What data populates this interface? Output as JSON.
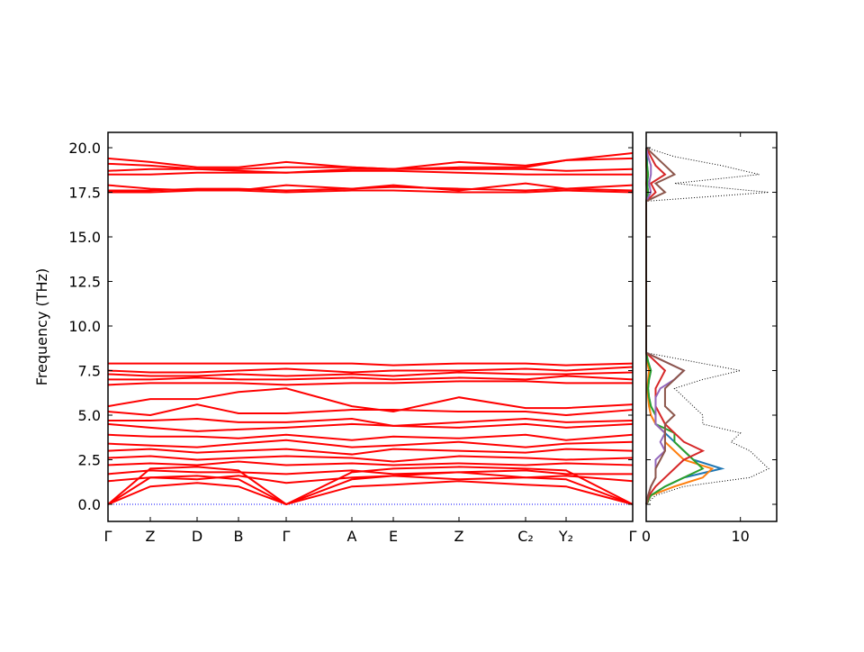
{
  "chart_data": [
    {
      "type": "line",
      "y_label": "Frequency (THz)",
      "color": "#ff0000",
      "zero_line_color": "#0000ff",
      "x": [
        0,
        47,
        99,
        145,
        198,
        271,
        317,
        390,
        464,
        509,
        583
      ],
      "xlim": [
        0,
        583
      ],
      "xticks": [
        {
          "value": 0,
          "label": "Γ"
        },
        {
          "value": 47,
          "label": "Z"
        },
        {
          "value": 99,
          "label": "D"
        },
        {
          "value": 145,
          "label": "B"
        },
        {
          "value": 198,
          "label": "Γ"
        },
        {
          "value": 271,
          "label": "A"
        },
        {
          "value": 317,
          "label": "E"
        },
        {
          "value": 390,
          "label": "Z"
        },
        {
          "value": 464,
          "label": "C₂"
        },
        {
          "value": 509,
          "label": "Y₂"
        },
        {
          "value": 583,
          "label": "Γ"
        }
      ],
      "ylim": [
        -0.96,
        20.86
      ],
      "yticks": [
        {
          "value": 0,
          "label": "0.0"
        },
        {
          "value": 2.5,
          "label": "2.5"
        },
        {
          "value": 5,
          "label": "5.0"
        },
        {
          "value": 7.5,
          "label": "7.5"
        },
        {
          "value": 10,
          "label": "10.0"
        },
        {
          "value": 12.5,
          "label": "12.5"
        },
        {
          "value": 15,
          "label": "15.0"
        },
        {
          "value": 17.5,
          "label": "17.5"
        },
        {
          "value": 20,
          "label": "20.0"
        }
      ],
      "series": [
        {
          "values": [
            17.5,
            17.5,
            17.6,
            17.6,
            17.5,
            17.6,
            17.6,
            17.5,
            17.5,
            17.6,
            17.5
          ]
        },
        {
          "values": [
            17.6,
            17.6,
            17.7,
            17.7,
            17.6,
            17.7,
            17.8,
            17.7,
            17.6,
            17.7,
            17.6
          ]
        },
        {
          "values": [
            17.9,
            17.7,
            17.6,
            17.6,
            17.9,
            17.7,
            17.9,
            17.6,
            18.0,
            17.7,
            17.9
          ]
        },
        {
          "values": [
            18.5,
            18.5,
            18.6,
            18.6,
            18.6,
            18.7,
            18.7,
            18.6,
            18.5,
            18.5,
            18.5
          ]
        },
        {
          "values": [
            18.7,
            18.8,
            18.8,
            18.7,
            18.6,
            18.8,
            18.8,
            18.8,
            18.8,
            18.7,
            18.8
          ]
        },
        {
          "values": [
            19.1,
            19.0,
            18.8,
            18.8,
            18.9,
            18.9,
            18.8,
            19.2,
            19.0,
            19.3,
            19.4
          ]
        },
        {
          "values": [
            19.4,
            19.2,
            18.9,
            18.9,
            19.2,
            18.9,
            18.8,
            18.9,
            18.9,
            19.3,
            19.7
          ]
        },
        {
          "values": [
            6.7,
            6.8,
            6.8,
            6.8,
            6.7,
            6.8,
            6.8,
            6.9,
            6.9,
            6.8,
            6.8
          ]
        },
        {
          "values": [
            7.0,
            7.0,
            7.1,
            7.0,
            7.0,
            7.1,
            7.0,
            7.1,
            7.0,
            7.2,
            7.0
          ]
        },
        {
          "values": [
            7.3,
            7.2,
            7.2,
            7.3,
            7.2,
            7.3,
            7.2,
            7.4,
            7.3,
            7.3,
            7.4
          ]
        },
        {
          "values": [
            7.5,
            7.4,
            7.4,
            7.5,
            7.6,
            7.4,
            7.5,
            7.5,
            7.6,
            7.5,
            7.7
          ]
        },
        {
          "values": [
            7.9,
            7.9,
            7.9,
            7.9,
            7.9,
            7.9,
            7.8,
            7.9,
            7.9,
            7.8,
            7.9
          ]
        },
        {
          "values": [
            5.5,
            5.9,
            5.9,
            6.3,
            6.5,
            5.5,
            5.2,
            6.0,
            5.4,
            5.4,
            5.6
          ]
        },
        {
          "values": [
            5.2,
            5.0,
            5.6,
            5.1,
            5.1,
            5.3,
            5.3,
            5.2,
            5.2,
            5.0,
            5.3
          ]
        },
        {
          "values": [
            4.7,
            4.7,
            4.8,
            4.6,
            4.6,
            4.8,
            4.4,
            4.6,
            4.8,
            4.6,
            4.7
          ]
        },
        {
          "values": [
            4.5,
            4.3,
            4.1,
            4.2,
            4.3,
            4.5,
            4.4,
            4.3,
            4.5,
            4.3,
            4.5
          ]
        },
        {
          "values": [
            3.9,
            3.8,
            3.8,
            3.7,
            3.9,
            3.6,
            3.8,
            3.7,
            3.9,
            3.6,
            3.9
          ]
        },
        {
          "values": [
            3.4,
            3.3,
            3.2,
            3.4,
            3.6,
            3.2,
            3.3,
            3.5,
            3.2,
            3.4,
            3.5
          ]
        },
        {
          "values": [
            3.0,
            3.1,
            2.9,
            3.0,
            3.1,
            2.8,
            3.1,
            3.0,
            2.9,
            3.1,
            3.0
          ]
        },
        {
          "values": [
            2.6,
            2.7,
            2.5,
            2.6,
            2.7,
            2.6,
            2.4,
            2.7,
            2.6,
            2.5,
            2.6
          ]
        },
        {
          "values": [
            2.2,
            2.3,
            2.2,
            2.4,
            2.2,
            2.3,
            2.2,
            2.3,
            2.2,
            2.3,
            2.2
          ]
        },
        {
          "values": [
            1.7,
            1.9,
            1.8,
            1.8,
            1.7,
            1.9,
            1.7,
            1.8,
            1.9,
            1.7,
            1.7
          ]
        },
        {
          "values": [
            1.3,
            1.5,
            1.4,
            1.6,
            1.2,
            1.5,
            1.6,
            1.4,
            1.5,
            1.6,
            1.3
          ]
        },
        {
          "values": [
            0,
            2.0,
            2.1,
            1.9,
            0,
            1.8,
            2.0,
            2.1,
            2.0,
            1.9,
            0
          ]
        },
        {
          "values": [
            0,
            1.5,
            1.6,
            1.4,
            0,
            1.4,
            1.6,
            1.8,
            1.5,
            1.4,
            0
          ]
        },
        {
          "values": [
            0,
            1.0,
            1.2,
            1.0,
            0,
            1.0,
            1.1,
            1.3,
            1.1,
            1.0,
            0
          ]
        }
      ]
    },
    {
      "type": "dos",
      "y": [
        0,
        0.5,
        1,
        1.5,
        2,
        2.5,
        3,
        3.5,
        4,
        4.5,
        5,
        5.5,
        6,
        6.5,
        7,
        7.5,
        8,
        8.5,
        17,
        17.5,
        18,
        18.5,
        19,
        19.5,
        20
      ],
      "xlim": [
        0,
        13.85
      ],
      "xticks": [
        0,
        10
      ],
      "series": [
        {
          "color": "#000000",
          "style": "dotted",
          "values": [
            0,
            1,
            4,
            11,
            13,
            12,
            11,
            9,
            10,
            6,
            6,
            5,
            4,
            3,
            6,
            10,
            5,
            0,
            0,
            13,
            3,
            12,
            8,
            3,
            0
          ]
        },
        {
          "color": "#1f77b4",
          "values": [
            0,
            0.5,
            2,
            4,
            8,
            5,
            4,
            3,
            2,
            1,
            1,
            0.5,
            0.3,
            0.2,
            0.3,
            0.5,
            0.2,
            0,
            0,
            0.2,
            0.1,
            0.2,
            0.1,
            0.1,
            0
          ]
        },
        {
          "color": "#ff7f0e",
          "values": [
            0,
            0.5,
            3,
            6,
            7,
            4,
            3,
            2,
            2,
            1,
            0.5,
            0.3,
            0.2,
            0.1,
            0.2,
            0.3,
            0.1,
            0,
            0,
            0.1,
            0,
            0.1,
            0,
            0,
            0
          ]
        },
        {
          "color": "#2ca02c",
          "values": [
            0,
            0.5,
            2,
            4,
            6,
            5,
            4,
            3,
            3,
            1,
            1,
            0.5,
            0.3,
            0.2,
            0.3,
            0.5,
            0.2,
            0,
            0,
            0.2,
            0.1,
            0.2,
            0.1,
            0,
            0
          ]
        },
        {
          "color": "#d62728",
          "values": [
            0,
            0.3,
            1,
            2,
            3,
            4,
            6,
            4,
            3,
            2,
            1.5,
            1,
            1,
            1,
            1.5,
            2,
            1,
            0,
            0,
            1,
            0.5,
            2,
            1,
            0.5,
            0
          ]
        },
        {
          "color": "#9467bd",
          "values": [
            0,
            0.2,
            0.5,
            1,
            1,
            1,
            2,
            1.5,
            2,
            1,
            1,
            1,
            1,
            1.5,
            3,
            4,
            2,
            0,
            0,
            0.5,
            0.3,
            0.5,
            0.5,
            0.2,
            0
          ]
        },
        {
          "color": "#8c564b",
          "values": [
            0,
            0.2,
            0.5,
            1,
            1,
            1.5,
            2,
            2,
            2,
            2,
            3,
            2,
            2,
            2,
            3,
            4,
            2,
            0,
            0,
            2,
            1,
            3,
            2,
            1,
            0
          ]
        }
      ]
    }
  ]
}
